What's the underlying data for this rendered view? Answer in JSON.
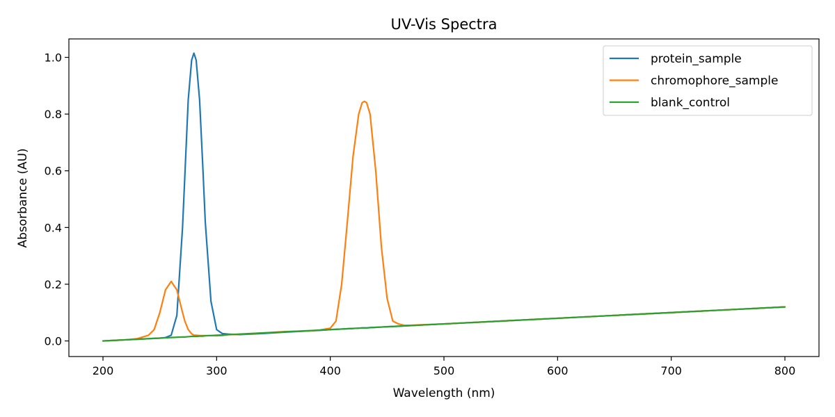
{
  "chart_data": {
    "type": "line",
    "title": "UV-Vis Spectra",
    "xlabel": "Wavelength (nm)",
    "ylabel": "Absorbance (AU)",
    "xlim": [
      170,
      830
    ],
    "ylim": [
      -0.055,
      1.065
    ],
    "x_ticks": [
      200,
      300,
      400,
      500,
      600,
      700,
      800
    ],
    "x_tick_labels": [
      "200",
      "300",
      "400",
      "500",
      "600",
      "700",
      "800"
    ],
    "y_ticks": [
      0.0,
      0.2,
      0.4,
      0.6,
      0.8,
      1.0
    ],
    "y_tick_labels": [
      "0.0",
      "0.2",
      "0.4",
      "0.6",
      "0.8",
      "1.0"
    ],
    "grid": false,
    "legend_position": "top-right",
    "x": [
      200,
      210,
      220,
      230,
      240,
      245,
      250,
      255,
      260,
      265,
      270,
      272,
      275,
      278,
      280,
      282,
      285,
      288,
      290,
      295,
      300,
      305,
      310,
      320,
      340,
      360,
      380,
      390,
      400,
      405,
      410,
      415,
      420,
      425,
      428,
      430,
      432,
      435,
      440,
      445,
      450,
      455,
      460,
      465,
      470,
      480,
      500,
      550,
      600,
      650,
      700,
      750,
      800
    ],
    "series": [
      {
        "name": "protein_sample",
        "color": "#1f77b4",
        "values": [
          0.0,
          0.002,
          0.004,
          0.006,
          0.008,
          0.009,
          0.01,
          0.012,
          0.02,
          0.09,
          0.4,
          0.58,
          0.85,
          0.99,
          1.015,
          0.99,
          0.85,
          0.6,
          0.42,
          0.14,
          0.04,
          0.026,
          0.024,
          0.022,
          0.026,
          0.031,
          0.035,
          0.037,
          0.04,
          0.041,
          0.042,
          0.043,
          0.044,
          0.045,
          0.046,
          0.046,
          0.046,
          0.047,
          0.048,
          0.049,
          0.05,
          0.051,
          0.052,
          0.053,
          0.054,
          0.056,
          0.06,
          0.07,
          0.08,
          0.09,
          0.1,
          0.11,
          0.12
        ]
      },
      {
        "name": "chromophore_sample",
        "color": "#ff7f0e",
        "values": [
          0.0,
          0.002,
          0.004,
          0.008,
          0.02,
          0.04,
          0.1,
          0.18,
          0.21,
          0.18,
          0.1,
          0.07,
          0.04,
          0.025,
          0.02,
          0.02,
          0.019,
          0.019,
          0.019,
          0.019,
          0.018,
          0.019,
          0.022,
          0.023,
          0.028,
          0.033,
          0.035,
          0.038,
          0.045,
          0.07,
          0.2,
          0.42,
          0.65,
          0.8,
          0.84,
          0.845,
          0.84,
          0.8,
          0.6,
          0.33,
          0.15,
          0.07,
          0.06,
          0.055,
          0.055,
          0.057,
          0.06,
          0.07,
          0.08,
          0.09,
          0.1,
          0.11,
          0.12
        ]
      },
      {
        "name": "blank_control",
        "color": "#2ca02c",
        "values": [
          0.0,
          0.002,
          0.004,
          0.006,
          0.008,
          0.009,
          0.01,
          0.011,
          0.012,
          0.013,
          0.014,
          0.014,
          0.015,
          0.016,
          0.016,
          0.016,
          0.017,
          0.017,
          0.018,
          0.019,
          0.02,
          0.021,
          0.022,
          0.024,
          0.028,
          0.032,
          0.036,
          0.038,
          0.04,
          0.041,
          0.042,
          0.043,
          0.044,
          0.045,
          0.046,
          0.046,
          0.046,
          0.047,
          0.048,
          0.049,
          0.05,
          0.051,
          0.052,
          0.053,
          0.054,
          0.056,
          0.06,
          0.07,
          0.08,
          0.09,
          0.1,
          0.11,
          0.12
        ]
      }
    ]
  }
}
